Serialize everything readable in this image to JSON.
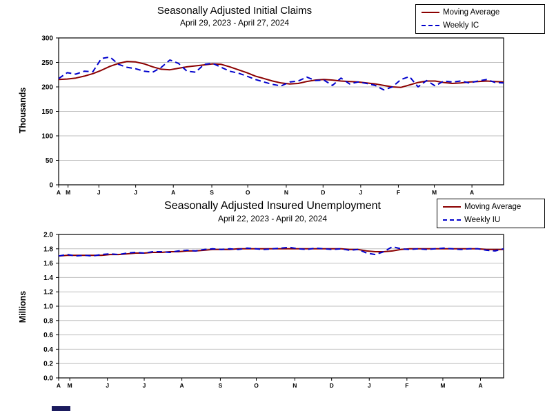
{
  "colors": {
    "moving_average": "#8B0000",
    "weekly": "#0000CC",
    "grid": "#bfbfbf",
    "axis": "#000000",
    "background": "#ffffff"
  },
  "chart_data": [
    {
      "type": "line",
      "title": "Seasonally Adjusted Initial Claims",
      "subtitle": "April 29, 2023 - April 27, 2024",
      "ylabel": "Thousands",
      "ylim": [
        0,
        300
      ],
      "ytick_step": 50,
      "ytick_decimals": 0,
      "grid": true,
      "legend_position": "top-right",
      "weeks_total": 52,
      "x_ticks": [
        {
          "label": "A",
          "week": 0
        },
        {
          "label": "M",
          "week": 1.1
        },
        {
          "label": "J",
          "week": 4.7
        },
        {
          "label": "J",
          "week": 9.0
        },
        {
          "label": "A",
          "week": 13.4
        },
        {
          "label": "S",
          "week": 17.9
        },
        {
          "label": "O",
          "week": 22.1
        },
        {
          "label": "N",
          "week": 26.6
        },
        {
          "label": "D",
          "week": 30.9
        },
        {
          "label": "J",
          "week": 35.3
        },
        {
          "label": "F",
          "week": 39.7
        },
        {
          "label": "M",
          "week": 43.9
        },
        {
          "label": "A",
          "week": 48.3
        }
      ],
      "series": [
        {
          "name": "Moving Average",
          "color": "#8B0000",
          "dash": "solid",
          "values": [
            215,
            216,
            218,
            222,
            227,
            234,
            242,
            248,
            252,
            251,
            247,
            241,
            236,
            235,
            238,
            241,
            243,
            245,
            247,
            246,
            241,
            235,
            229,
            222,
            217,
            212,
            208,
            206,
            207,
            211,
            214,
            215,
            214,
            212,
            211,
            210,
            208,
            206,
            203,
            200,
            199,
            204,
            209,
            212,
            212,
            209,
            207,
            208,
            210,
            211,
            212,
            211,
            210
          ]
        },
        {
          "name": "Weekly IC",
          "color": "#0000CC",
          "dash": "dashed",
          "values": [
            217,
            229,
            226,
            232,
            231,
            258,
            261,
            246,
            240,
            237,
            232,
            230,
            240,
            255,
            248,
            232,
            230,
            246,
            248,
            240,
            232,
            228,
            222,
            215,
            210,
            205,
            202,
            210,
            212,
            220,
            213,
            214,
            203,
            218,
            206,
            210,
            207,
            203,
            194,
            200,
            215,
            221,
            200,
            213,
            202,
            212,
            210,
            212,
            208,
            212,
            215,
            209,
            208
          ]
        }
      ]
    },
    {
      "type": "line",
      "title": "Seasonally Adjusted Insured Unemployment",
      "subtitle": "April 22, 2023 - April 20, 2024",
      "ylabel": "Millions",
      "ylim": [
        0,
        2.0
      ],
      "ytick_step": 0.2,
      "ytick_decimals": 1,
      "grid": true,
      "legend_position": "top-right",
      "weeks_total": 52,
      "x_ticks": [
        {
          "label": "A",
          "week": 0
        },
        {
          "label": "M",
          "week": 1.3
        },
        {
          "label": "J",
          "week": 5.7
        },
        {
          "label": "J",
          "week": 10.0
        },
        {
          "label": "A",
          "week": 14.4
        },
        {
          "label": "S",
          "week": 18.9
        },
        {
          "label": "O",
          "week": 23.1
        },
        {
          "label": "N",
          "week": 27.6
        },
        {
          "label": "D",
          "week": 31.9
        },
        {
          "label": "J",
          "week": 36.3
        },
        {
          "label": "F",
          "week": 40.7
        },
        {
          "label": "M",
          "week": 44.9
        },
        {
          "label": "A",
          "week": 49.3
        }
      ],
      "series": [
        {
          "name": "Moving Average",
          "color": "#8B0000",
          "dash": "solid",
          "values": [
            1.7,
            1.71,
            1.71,
            1.71,
            1.71,
            1.71,
            1.72,
            1.72,
            1.73,
            1.74,
            1.74,
            1.75,
            1.75,
            1.76,
            1.76,
            1.77,
            1.77,
            1.78,
            1.79,
            1.79,
            1.79,
            1.8,
            1.8,
            1.8,
            1.8,
            1.8,
            1.8,
            1.8,
            1.8,
            1.8,
            1.8,
            1.8,
            1.8,
            1.8,
            1.79,
            1.79,
            1.77,
            1.76,
            1.76,
            1.77,
            1.79,
            1.8,
            1.8,
            1.8,
            1.8,
            1.8,
            1.8,
            1.8,
            1.8,
            1.8,
            1.79,
            1.79,
            1.79
          ]
        },
        {
          "name": "Weekly IU",
          "color": "#0000CC",
          "dash": "dashed",
          "values": [
            1.7,
            1.72,
            1.7,
            1.71,
            1.7,
            1.72,
            1.73,
            1.72,
            1.74,
            1.75,
            1.74,
            1.76,
            1.76,
            1.75,
            1.77,
            1.78,
            1.77,
            1.79,
            1.8,
            1.79,
            1.8,
            1.79,
            1.81,
            1.8,
            1.79,
            1.8,
            1.81,
            1.82,
            1.8,
            1.79,
            1.81,
            1.8,
            1.79,
            1.8,
            1.78,
            1.79,
            1.74,
            1.72,
            1.76,
            1.83,
            1.8,
            1.79,
            1.8,
            1.79,
            1.8,
            1.81,
            1.8,
            1.79,
            1.8,
            1.8,
            1.78,
            1.77,
            1.8
          ]
        }
      ]
    }
  ]
}
